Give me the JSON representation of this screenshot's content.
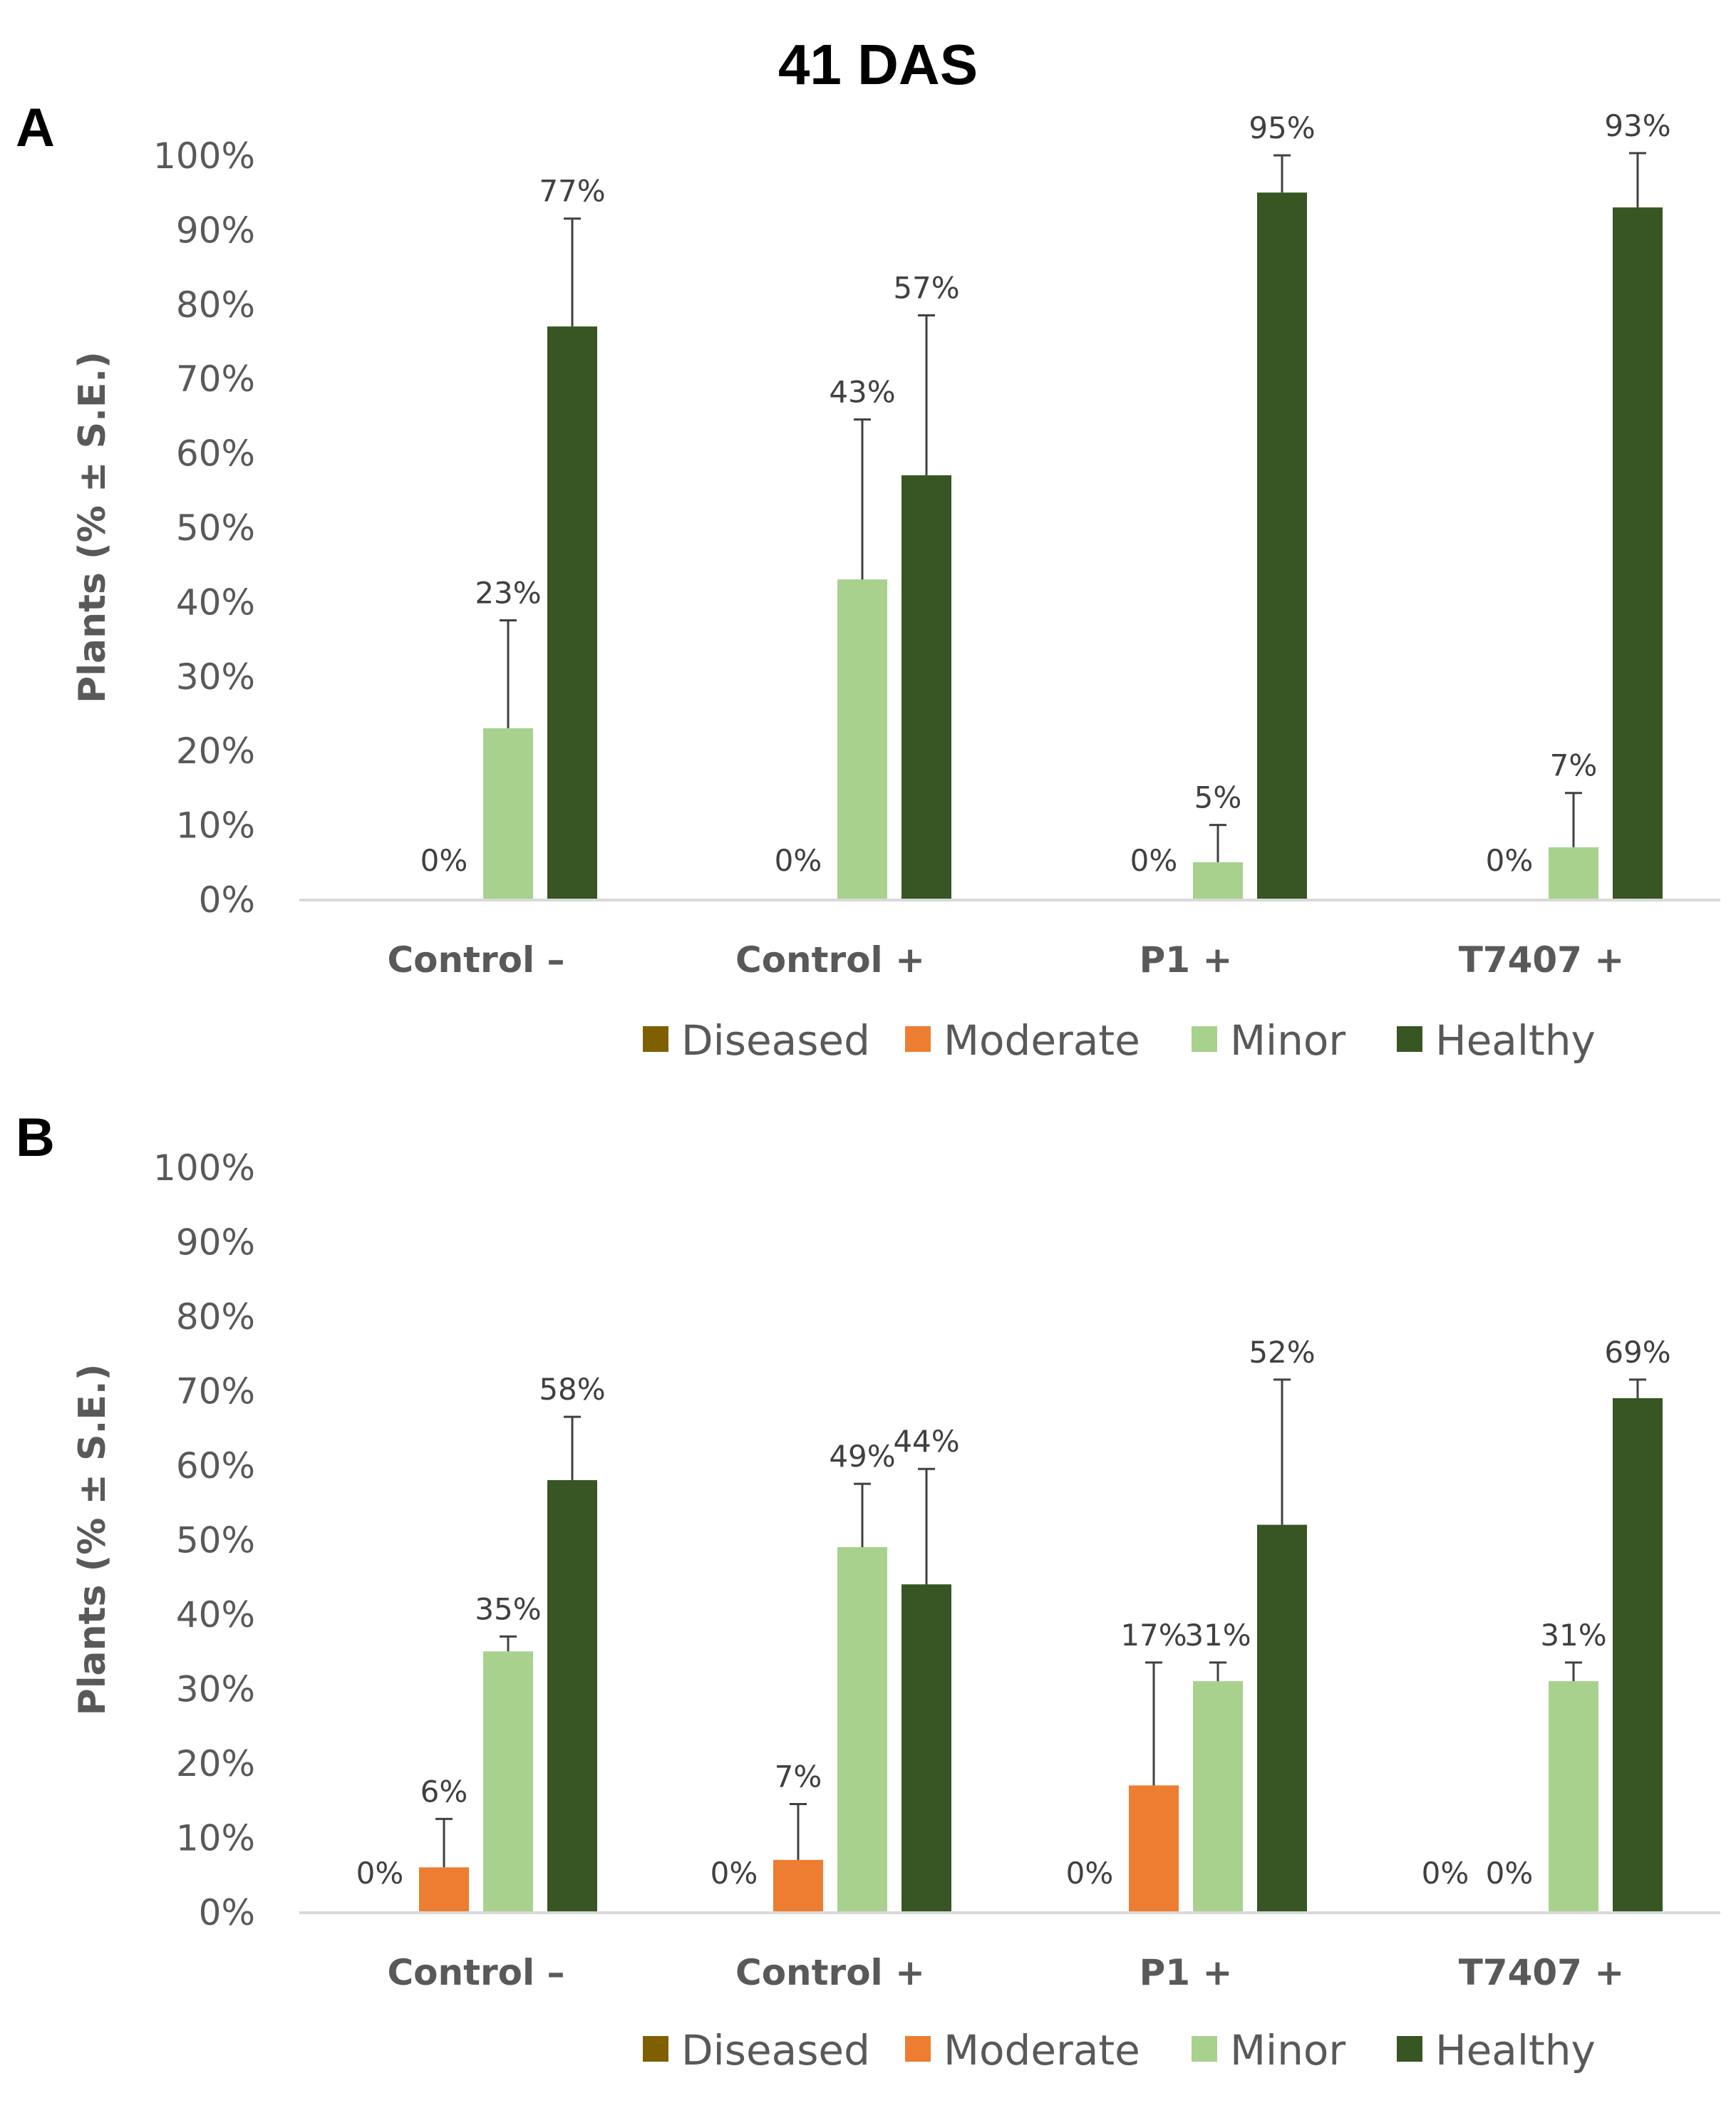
{
  "figure_title": "41 DAS",
  "colors": {
    "Diseased": "#7f6000",
    "Moderate": "#ed7d31",
    "Minor": "#a9d18e",
    "Healthy": "#375623",
    "axis": "#d9d9d9",
    "errorbar": "#404040"
  },
  "chart_data": [
    {
      "panel": "A",
      "type": "bar",
      "ylabel": "Plants (% ± S.E.)",
      "ylim": [
        0,
        100
      ],
      "yticks": [
        "0%",
        "10%",
        "20%",
        "30%",
        "40%",
        "50%",
        "60%",
        "70%",
        "80%",
        "90%",
        "100%"
      ],
      "categories": [
        "Control –",
        "Control +",
        "P1 +",
        "T7407 +"
      ],
      "legend": [
        "Diseased",
        "Moderate",
        "Minor",
        "Healthy"
      ],
      "series": [
        {
          "name": "Diseased",
          "values": [
            0,
            0,
            0,
            0
          ],
          "errors": [
            0,
            0,
            0,
            0
          ],
          "labels": [],
          "label_index": []
        },
        {
          "name": "Moderate",
          "values": [
            0,
            0,
            0,
            0
          ],
          "errors": [
            0,
            0,
            0,
            0
          ],
          "labels": [
            "0%",
            "0%",
            "0%",
            "0%"
          ],
          "label_index": [
            0,
            1,
            2,
            3
          ]
        },
        {
          "name": "Minor",
          "values": [
            23,
            43,
            5,
            7
          ],
          "errors": [
            14.5,
            21.5,
            5,
            7.3
          ],
          "labels": [
            "23%",
            "43%",
            "5%",
            "7%"
          ],
          "label_index": [
            0,
            1,
            2,
            3
          ]
        },
        {
          "name": "Healthy",
          "values": [
            77,
            57,
            95,
            93
          ],
          "errors": [
            14.5,
            21.5,
            5,
            7.3
          ],
          "labels": [
            "77%",
            "57%",
            "95%",
            "93%"
          ],
          "label_index": [
            0,
            1,
            2,
            3
          ]
        }
      ],
      "zero_labels": [
        "0%",
        "0%",
        "0%",
        "0%"
      ]
    },
    {
      "panel": "B",
      "type": "bar",
      "ylabel": "Plants (% ± S.E.)",
      "ylim": [
        0,
        100
      ],
      "yticks": [
        "0%",
        "10%",
        "20%",
        "30%",
        "40%",
        "50%",
        "60%",
        "70%",
        "80%",
        "90%",
        "100%"
      ],
      "categories": [
        "Control –",
        "Control +",
        "P1 +",
        "T7407 +"
      ],
      "legend": [
        "Diseased",
        "Moderate",
        "Minor",
        "Healthy"
      ],
      "series": [
        {
          "name": "Diseased",
          "values": [
            0,
            0,
            0,
            0
          ],
          "errors": [
            0,
            0,
            0,
            0
          ],
          "labels": [
            "0%",
            "0%",
            "0%",
            "0%"
          ],
          "label_index": [
            0,
            1,
            2,
            3
          ]
        },
        {
          "name": "Moderate",
          "values": [
            6,
            7,
            17,
            0
          ],
          "errors": [
            6.5,
            7.5,
            16.5,
            0
          ],
          "labels": [
            "6%",
            "7%",
            "17%",
            "0%"
          ],
          "label_index": [
            0,
            1,
            2,
            3
          ]
        },
        {
          "name": "Minor",
          "values": [
            35,
            49,
            31,
            31
          ],
          "errors": [
            2,
            8.5,
            2.5,
            2.5
          ],
          "labels": [
            "35%",
            "49%",
            "31%",
            "31%"
          ],
          "label_index": [
            0,
            1,
            2,
            3
          ]
        },
        {
          "name": "Healthy",
          "values": [
            58,
            44,
            52,
            69
          ],
          "errors": [
            8.5,
            15.5,
            19.5,
            2.5
          ],
          "labels": [
            "58%",
            "44%",
            "52%",
            "69%"
          ],
          "label_index": [
            0,
            1,
            2,
            3
          ]
        }
      ]
    }
  ]
}
